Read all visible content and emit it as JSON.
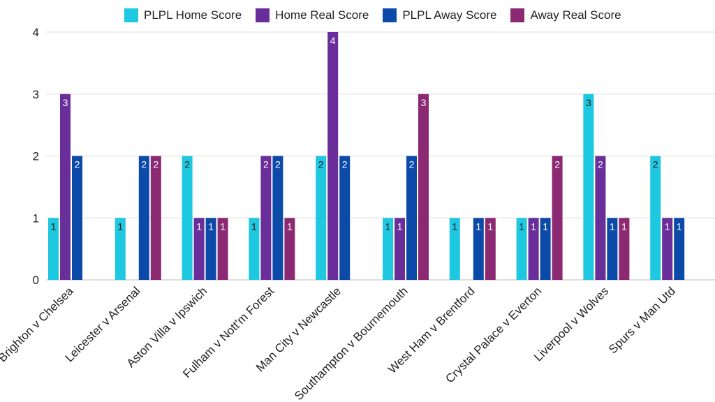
{
  "chart_data": {
    "type": "bar",
    "title": "",
    "xlabel": "",
    "ylabel": "",
    "ylim": [
      0,
      4
    ],
    "yticks": [
      "0",
      "1",
      "2",
      "3",
      "4"
    ],
    "grid": true,
    "legend_position": "top",
    "categories": [
      "Brighton v Chelsea",
      "Leicester v Arsenal",
      "Aston Villa v Ipswich",
      "Fulham v Nott'm Forest",
      "Man City v Newcastle",
      "Southampton v Bournemouth",
      "West Ham v Brentford",
      "Crystal Palace v Everton",
      "Liverpool v Wolves",
      "Spurs v Man Utd"
    ],
    "series": [
      {
        "name": "PLPL Home Score",
        "color": "#1ec8e0",
        "values": [
          1,
          1,
          2,
          1,
          2,
          1,
          1,
          1,
          3,
          2
        ]
      },
      {
        "name": "Home Real Score",
        "color": "#6a2e9a",
        "values": [
          3,
          0,
          1,
          2,
          4,
          1,
          0,
          1,
          2,
          1
        ]
      },
      {
        "name": "PLPL Away Score",
        "color": "#0b4aa8",
        "values": [
          2,
          2,
          1,
          2,
          2,
          2,
          1,
          1,
          1,
          1
        ]
      },
      {
        "name": "Away Real Score",
        "color": "#8b2a72",
        "values": [
          0,
          2,
          1,
          1,
          0,
          3,
          1,
          2,
          1,
          0
        ]
      }
    ]
  }
}
